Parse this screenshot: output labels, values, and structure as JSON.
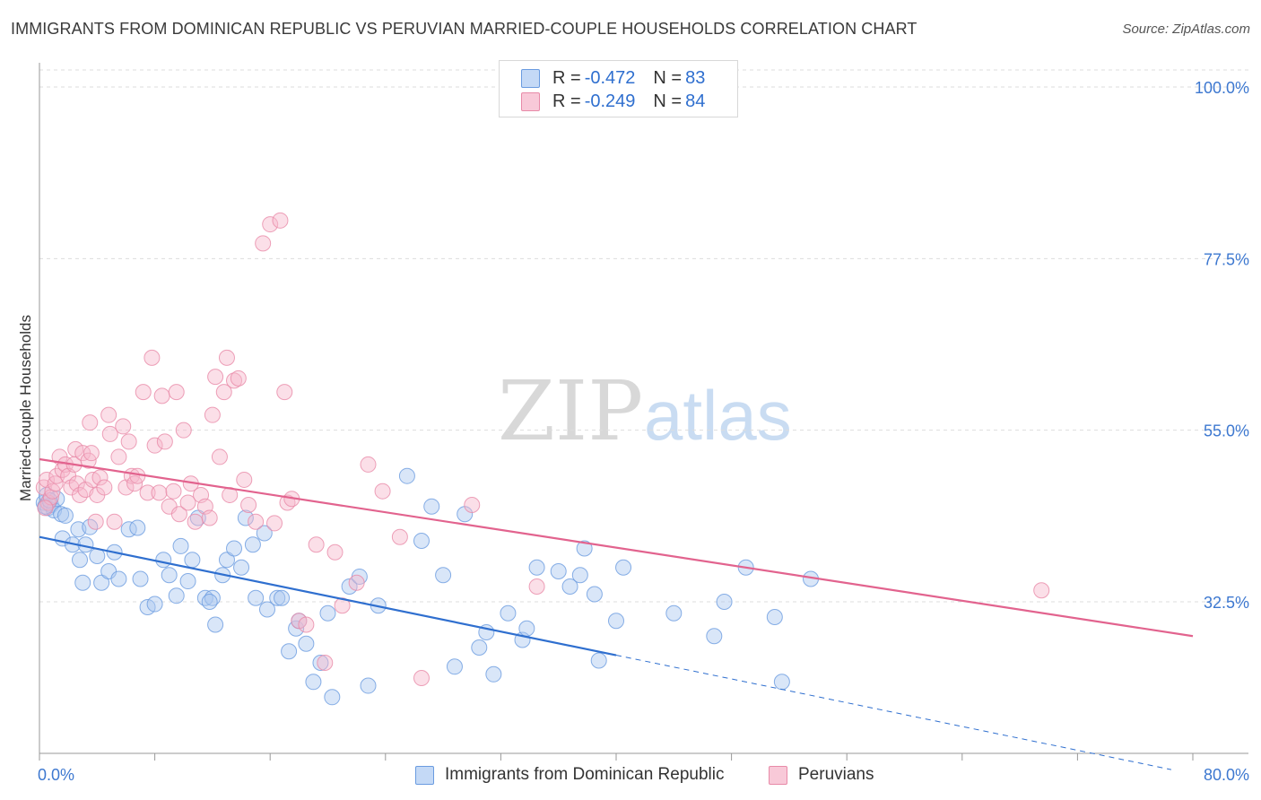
{
  "title": "IMMIGRANTS FROM DOMINICAN REPUBLIC VS PERUVIAN MARRIED-COUPLE HOUSEHOLDS CORRELATION CHART",
  "source": "Source: ZipAtlas.com",
  "watermark": {
    "zip": "ZIP",
    "atlas": "atlas"
  },
  "legend": {
    "rows": [
      {
        "r_label": "R = ",
        "r_value": "-0.472",
        "n_label": "N = ",
        "n_value": "83"
      },
      {
        "r_label": "R = ",
        "r_value": "-0.249",
        "n_label": "N = ",
        "n_value": "84"
      }
    ]
  },
  "colors": {
    "blue_fill": "#aac8f0",
    "blue_stroke": "#6a9be0",
    "blue_line": "#2f6fcf",
    "pink_fill": "#f6b8cc",
    "pink_stroke": "#e88aa8",
    "pink_line": "#e2638e",
    "axis_text": "#3d78d0",
    "grid": "#dddddd"
  },
  "chart_data": {
    "type": "scatter",
    "xlabel": "",
    "ylabel": "Married-couple Households",
    "xlim": [
      0,
      80
    ],
    "ylim": [
      10,
      102
    ],
    "x_tick_labels": [
      "0.0%",
      "80.0%"
    ],
    "y_ticks": [
      100,
      77.5,
      55,
      32.5
    ],
    "y_tick_labels": [
      "100.0%",
      "77.5%",
      "55.0%",
      "32.5%"
    ],
    "grid": "horizontal dashed",
    "legend_position": "bottom",
    "series": [
      {
        "name": "Immigrants from Dominican Republic",
        "color": "#aac8f0",
        "R": -0.472,
        "N": 83,
        "trend": {
          "x0": 0,
          "y0": 41.0,
          "x1": 40,
          "y1": 25.5,
          "dash_to_x": 78.5,
          "dash_to_y": 10.5
        },
        "points": [
          [
            0.3,
            45.5
          ],
          [
            0.5,
            46.5
          ],
          [
            0.6,
            44.8
          ],
          [
            0.8,
            45.2
          ],
          [
            1.0,
            44.5
          ],
          [
            1.2,
            46.0
          ],
          [
            0.4,
            45.0
          ],
          [
            0.7,
            45.8
          ],
          [
            1.5,
            44.0
          ],
          [
            1.8,
            43.8
          ],
          [
            1.6,
            40.8
          ],
          [
            2.3,
            40.0
          ],
          [
            2.7,
            42.0
          ],
          [
            3.2,
            40.0
          ],
          [
            3.5,
            42.3
          ],
          [
            2.8,
            38.0
          ],
          [
            3.0,
            35.0
          ],
          [
            4.0,
            38.5
          ],
          [
            4.3,
            35.0
          ],
          [
            4.8,
            36.5
          ],
          [
            5.2,
            39.0
          ],
          [
            5.5,
            35.5
          ],
          [
            6.2,
            42.0
          ],
          [
            6.8,
            42.2
          ],
          [
            7.0,
            35.5
          ],
          [
            7.5,
            31.8
          ],
          [
            8.0,
            32.2
          ],
          [
            8.6,
            38.0
          ],
          [
            9.0,
            36.0
          ],
          [
            9.5,
            33.3
          ],
          [
            9.8,
            39.8
          ],
          [
            10.3,
            35.2
          ],
          [
            10.6,
            38.0
          ],
          [
            11.0,
            43.5
          ],
          [
            11.5,
            33.0
          ],
          [
            12.2,
            29.5
          ],
          [
            12.7,
            36.0
          ],
          [
            13.0,
            38.0
          ],
          [
            13.5,
            39.5
          ],
          [
            14.0,
            37.0
          ],
          [
            14.3,
            43.5
          ],
          [
            14.8,
            40.0
          ],
          [
            15.6,
            41.5
          ],
          [
            12.0,
            33.0
          ],
          [
            11.8,
            32.5
          ],
          [
            15.0,
            33.0
          ],
          [
            15.8,
            31.5
          ],
          [
            16.5,
            33.0
          ],
          [
            16.8,
            33.0
          ],
          [
            17.3,
            26.0
          ],
          [
            17.8,
            29.0
          ],
          [
            18.0,
            30.0
          ],
          [
            18.5,
            27.0
          ],
          [
            19.5,
            24.5
          ],
          [
            20.0,
            31.0
          ],
          [
            19.0,
            22.0
          ],
          [
            20.3,
            20.0
          ],
          [
            21.5,
            34.5
          ],
          [
            22.2,
            35.8
          ],
          [
            22.8,
            21.5
          ],
          [
            23.5,
            32.0
          ],
          [
            25.5,
            49.0
          ],
          [
            26.5,
            40.5
          ],
          [
            27.2,
            45.0
          ],
          [
            28.0,
            36.0
          ],
          [
            28.8,
            24.0
          ],
          [
            29.5,
            44.0
          ],
          [
            30.5,
            26.5
          ],
          [
            31.0,
            28.5
          ],
          [
            31.5,
            23.0
          ],
          [
            32.5,
            31.0
          ],
          [
            33.5,
            27.5
          ],
          [
            33.8,
            29.0
          ],
          [
            34.5,
            37.0
          ],
          [
            36.0,
            36.5
          ],
          [
            36.8,
            34.5
          ],
          [
            37.5,
            36.0
          ],
          [
            37.8,
            39.5
          ],
          [
            38.5,
            33.5
          ],
          [
            38.8,
            24.8
          ],
          [
            40.0,
            30.0
          ],
          [
            40.5,
            37.0
          ],
          [
            44.0,
            31.0
          ],
          [
            46.8,
            28.0
          ],
          [
            47.5,
            32.5
          ],
          [
            49.0,
            37.0
          ],
          [
            51.0,
            30.5
          ],
          [
            51.5,
            22.0
          ],
          [
            53.5,
            35.5
          ]
        ]
      },
      {
        "name": "Peruvians",
        "color": "#f6b8cc",
        "R": -0.249,
        "N": 84,
        "trend": {
          "x0": 0,
          "y0": 51.2,
          "x1": 80,
          "y1": 28.0
        },
        "points": [
          [
            0.3,
            47.5
          ],
          [
            0.5,
            48.5
          ],
          [
            0.6,
            45.5
          ],
          [
            0.8,
            46.2
          ],
          [
            0.4,
            44.8
          ],
          [
            0.9,
            47.0
          ],
          [
            1.1,
            48.0
          ],
          [
            1.2,
            49.0
          ],
          [
            1.4,
            51.5
          ],
          [
            1.6,
            49.8
          ],
          [
            1.8,
            50.5
          ],
          [
            2.0,
            49.0
          ],
          [
            2.2,
            47.5
          ],
          [
            2.4,
            50.5
          ],
          [
            2.5,
            52.5
          ],
          [
            2.6,
            48.0
          ],
          [
            2.8,
            46.5
          ],
          [
            3.0,
            52.0
          ],
          [
            3.2,
            47.2
          ],
          [
            3.4,
            51.0
          ],
          [
            3.5,
            56.0
          ],
          [
            3.6,
            52.0
          ],
          [
            3.7,
            48.5
          ],
          [
            3.9,
            43.0
          ],
          [
            4.0,
            46.5
          ],
          [
            4.2,
            48.8
          ],
          [
            4.5,
            47.5
          ],
          [
            4.8,
            57.0
          ],
          [
            4.9,
            54.5
          ],
          [
            5.2,
            43.0
          ],
          [
            5.5,
            51.5
          ],
          [
            5.8,
            55.5
          ],
          [
            6.0,
            47.5
          ],
          [
            6.2,
            53.5
          ],
          [
            6.4,
            49.0
          ],
          [
            6.6,
            48.0
          ],
          [
            6.8,
            49.0
          ],
          [
            7.2,
            60.0
          ],
          [
            7.5,
            46.8
          ],
          [
            7.8,
            64.5
          ],
          [
            8.0,
            53.0
          ],
          [
            8.3,
            46.8
          ],
          [
            8.5,
            59.5
          ],
          [
            8.7,
            53.5
          ],
          [
            9.0,
            45.0
          ],
          [
            9.3,
            47.0
          ],
          [
            9.5,
            60.0
          ],
          [
            9.7,
            44.0
          ],
          [
            10.0,
            55.0
          ],
          [
            10.3,
            45.5
          ],
          [
            10.5,
            48.0
          ],
          [
            10.8,
            43.0
          ],
          [
            11.2,
            46.5
          ],
          [
            11.5,
            45.0
          ],
          [
            11.8,
            43.5
          ],
          [
            12.0,
            57.0
          ],
          [
            12.2,
            62.0
          ],
          [
            12.5,
            51.5
          ],
          [
            12.8,
            60.0
          ],
          [
            13.0,
            64.5
          ],
          [
            13.2,
            46.5
          ],
          [
            13.5,
            61.5
          ],
          [
            13.8,
            61.8
          ],
          [
            14.2,
            48.5
          ],
          [
            14.5,
            45.2
          ],
          [
            15.0,
            43.0
          ],
          [
            15.5,
            79.5
          ],
          [
            16.0,
            82.0
          ],
          [
            16.3,
            42.8
          ],
          [
            16.7,
            82.5
          ],
          [
            17.0,
            60.0
          ],
          [
            17.2,
            45.5
          ],
          [
            17.5,
            46.0
          ],
          [
            18.0,
            30.0
          ],
          [
            18.5,
            29.5
          ],
          [
            19.2,
            40.0
          ],
          [
            19.8,
            24.5
          ],
          [
            20.5,
            39.0
          ],
          [
            21.0,
            32.0
          ],
          [
            22.0,
            35.0
          ],
          [
            22.8,
            50.5
          ],
          [
            23.8,
            47.0
          ],
          [
            25.0,
            41.0
          ],
          [
            26.5,
            22.5
          ],
          [
            30.0,
            45.2
          ],
          [
            34.5,
            34.5
          ],
          [
            69.5,
            34.0
          ]
        ]
      }
    ]
  },
  "bottom_legend": {
    "items": [
      {
        "label": "Immigrants from Dominican Republic"
      },
      {
        "label": "Peruvians"
      }
    ]
  }
}
